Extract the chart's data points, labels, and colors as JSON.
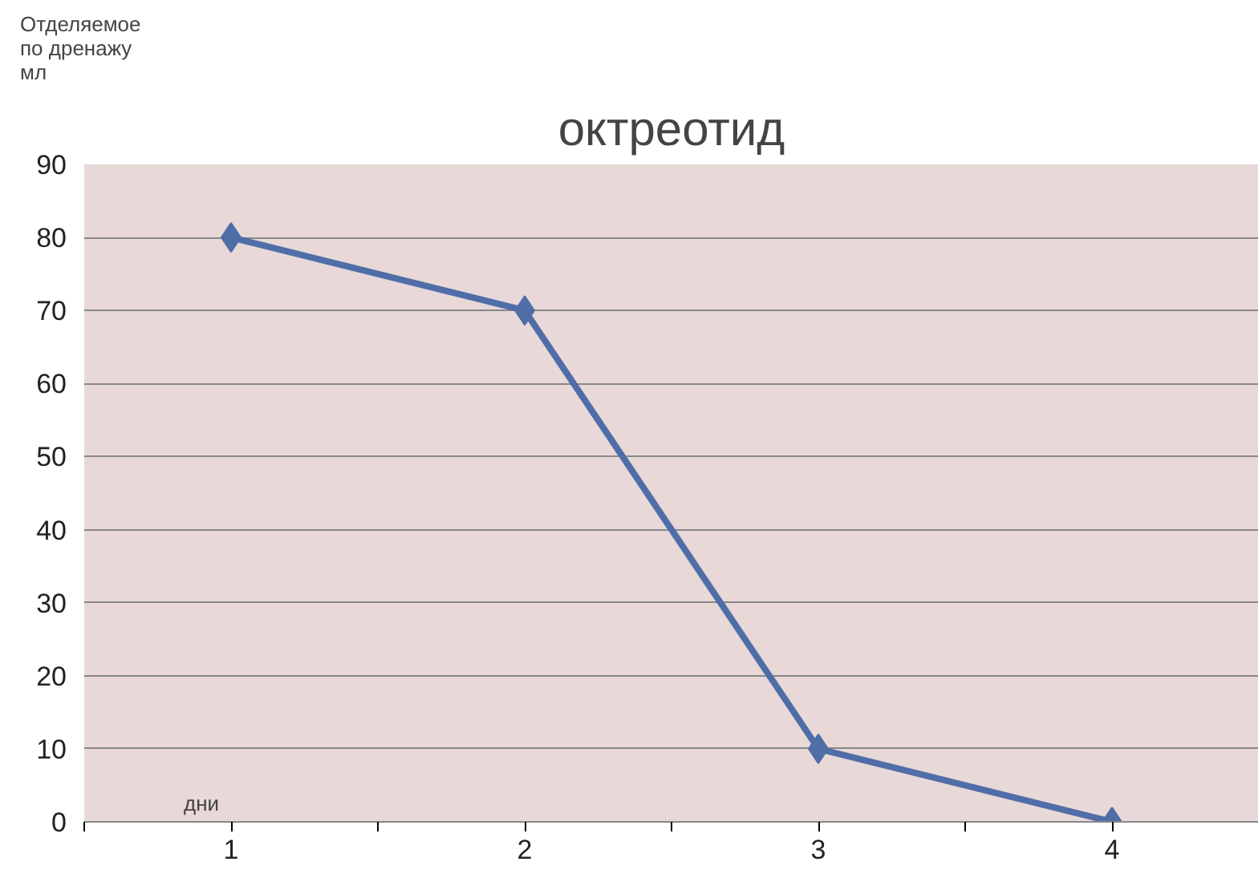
{
  "chart_data": {
    "type": "line",
    "title": "октреотид",
    "ylabel": "Отделяемое\nпо дренажу\nмл",
    "xlabel": "дни",
    "categories": [
      "1",
      "2",
      "3",
      "4"
    ],
    "series": [
      {
        "color": "#4f6ea8",
        "values": [
          80,
          70,
          10,
          0
        ]
      }
    ],
    "ylim": [
      0,
      90
    ],
    "yticks": [
      0,
      10,
      20,
      30,
      40,
      50,
      60,
      70,
      80,
      90
    ],
    "grid": "y",
    "marker": "diamond",
    "line_style": "solid"
  }
}
